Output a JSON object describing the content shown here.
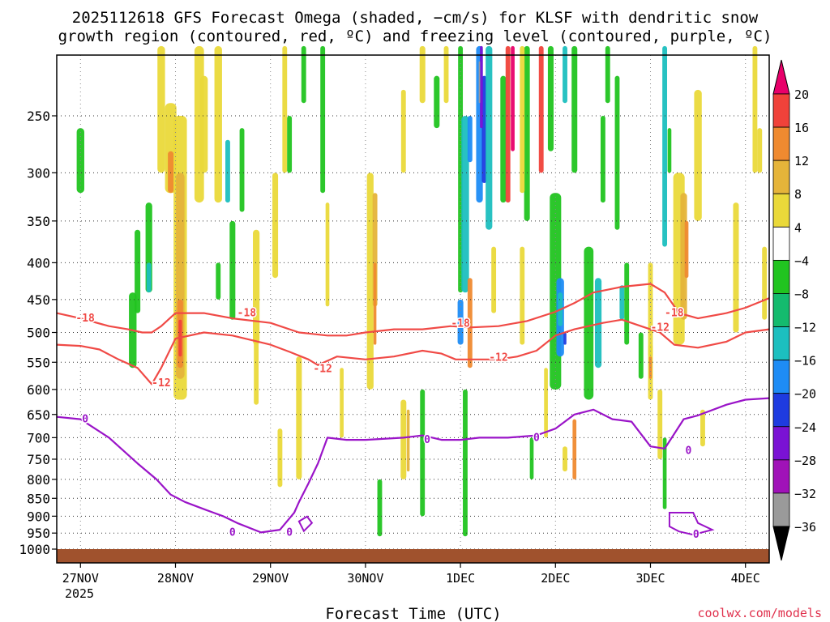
{
  "chart_data": {
    "type": "heatmap",
    "title_line1": "2025112618 GFS Forecast Omega (shaded, −cm/s) for KLSF with dendritic snow",
    "title_line2": "growth region (contoured, red, ºC) and freezing level (contoured, purple, ºC)",
    "xlabel": "Forecast Time (UTC)",
    "credit": "coolwx.com/models",
    "x_ticks": [
      {
        "label": "27NOV",
        "day": 0
      },
      {
        "label": "28NOV",
        "day": 1
      },
      {
        "label": "29NOV",
        "day": 2
      },
      {
        "label": "30NOV",
        "day": 3
      },
      {
        "label": "1DEC",
        "day": 4
      },
      {
        "label": "2DEC",
        "day": 5
      },
      {
        "label": "3DEC",
        "day": 6
      },
      {
        "label": "4DEC",
        "day": 7
      }
    ],
    "x_sublabel": "2025",
    "x_range_days": [
      -0.25,
      7.25
    ],
    "y_ticks": [
      250,
      300,
      350,
      400,
      450,
      500,
      550,
      600,
      650,
      700,
      750,
      800,
      850,
      900,
      950,
      1000
    ],
    "y_range_hpa": [
      200,
      1020
    ],
    "colorbar": {
      "labels": [
        "20",
        "16",
        "12",
        "8",
        "4",
        "−4",
        "−8",
        "−12",
        "−16",
        "−20",
        "−24",
        "−28",
        "−32",
        "−36"
      ],
      "bins": [
        {
          "color": "#e8006a"
        },
        {
          "color": "#f0423a"
        },
        {
          "color": "#ef8a30"
        },
        {
          "color": "#e5b43a"
        },
        {
          "color": "#ead93a"
        },
        {
          "color": "#ffffff"
        },
        {
          "color": "#21c420"
        },
        {
          "color": "#14bb6e"
        },
        {
          "color": "#1cbfbf"
        },
        {
          "color": "#1e8cf5"
        },
        {
          "color": "#1e3be0"
        },
        {
          "color": "#7a12d4"
        },
        {
          "color": "#a012b8"
        },
        {
          "color": "#9a9a9a"
        },
        {
          "color": "#000000"
        }
      ]
    },
    "dgz_top_label": "-18",
    "dgz_bottom_label": "-12",
    "freezing_label": "0",
    "dgz_top_-18C": [
      [
        -0.25,
        470
      ],
      [
        0,
        478
      ],
      [
        0.3,
        490
      ],
      [
        0.5,
        495
      ],
      [
        0.65,
        500
      ],
      [
        0.75,
        500
      ],
      [
        0.85,
        490
      ],
      [
        1,
        470
      ],
      [
        1.3,
        470
      ],
      [
        1.6,
        478
      ],
      [
        2,
        485
      ],
      [
        2.3,
        500
      ],
      [
        2.6,
        505
      ],
      [
        2.8,
        505
      ],
      [
        3,
        500
      ],
      [
        3.3,
        495
      ],
      [
        3.6,
        495
      ],
      [
        3.9,
        490
      ],
      [
        4.1,
        492
      ],
      [
        4.4,
        490
      ],
      [
        4.7,
        482
      ],
      [
        5,
        468
      ],
      [
        5.2,
        455
      ],
      [
        5.4,
        440
      ],
      [
        5.7,
        432
      ],
      [
        6,
        428
      ],
      [
        6.15,
        440
      ],
      [
        6.3,
        470
      ],
      [
        6.5,
        478
      ],
      [
        6.8,
        470
      ],
      [
        7,
        462
      ],
      [
        7.25,
        448
      ]
    ],
    "dgz_bottom_-12C": [
      [
        -0.25,
        520
      ],
      [
        0,
        522
      ],
      [
        0.2,
        528
      ],
      [
        0.4,
        545
      ],
      [
        0.6,
        560
      ],
      [
        0.75,
        590
      ],
      [
        0.85,
        560
      ],
      [
        1,
        510
      ],
      [
        1.3,
        500
      ],
      [
        1.6,
        505
      ],
      [
        2,
        520
      ],
      [
        2.2,
        532
      ],
      [
        2.4,
        545
      ],
      [
        2.5,
        555
      ],
      [
        2.7,
        540
      ],
      [
        3,
        545
      ],
      [
        3.3,
        540
      ],
      [
        3.6,
        530
      ],
      [
        3.8,
        535
      ],
      [
        3.95,
        545
      ],
      [
        4.2,
        545
      ],
      [
        4.4,
        545
      ],
      [
        4.6,
        540
      ],
      [
        4.8,
        530
      ],
      [
        5,
        505
      ],
      [
        5.2,
        495
      ],
      [
        5.5,
        485
      ],
      [
        5.7,
        480
      ],
      [
        5.9,
        490
      ],
      [
        6.1,
        500
      ],
      [
        6.25,
        520
      ],
      [
        6.5,
        525
      ],
      [
        6.8,
        515
      ],
      [
        7,
        500
      ],
      [
        7.25,
        495
      ]
    ],
    "freezing_level_0C": [
      [
        -0.25,
        655
      ],
      [
        0,
        660
      ],
      [
        0.3,
        700
      ],
      [
        0.6,
        760
      ],
      [
        0.8,
        800
      ],
      [
        0.95,
        840
      ],
      [
        1.1,
        860
      ],
      [
        1.3,
        880
      ],
      [
        1.4,
        890
      ],
      [
        1.5,
        900
      ],
      [
        1.65,
        920
      ],
      [
        1.9,
        948
      ],
      [
        2.1,
        940
      ],
      [
        2.25,
        890
      ],
      [
        2.3,
        860
      ],
      [
        2.4,
        810
      ],
      [
        2.5,
        760
      ],
      [
        2.6,
        700
      ],
      [
        2.8,
        705
      ],
      [
        3,
        705
      ],
      [
        3.4,
        700
      ],
      [
        3.6,
        695
      ],
      [
        3.8,
        705
      ],
      [
        4,
        705
      ],
      [
        4.2,
        700
      ],
      [
        4.5,
        700
      ],
      [
        4.8,
        695
      ],
      [
        5,
        680
      ],
      [
        5.2,
        650
      ],
      [
        5.4,
        640
      ],
      [
        5.6,
        660
      ],
      [
        5.8,
        665
      ],
      [
        6,
        720
      ],
      [
        6.15,
        725
      ],
      [
        6.35,
        660
      ],
      [
        6.5,
        652
      ],
      [
        6.8,
        630
      ],
      [
        7,
        620
      ],
      [
        7.25,
        617
      ]
    ]
  }
}
